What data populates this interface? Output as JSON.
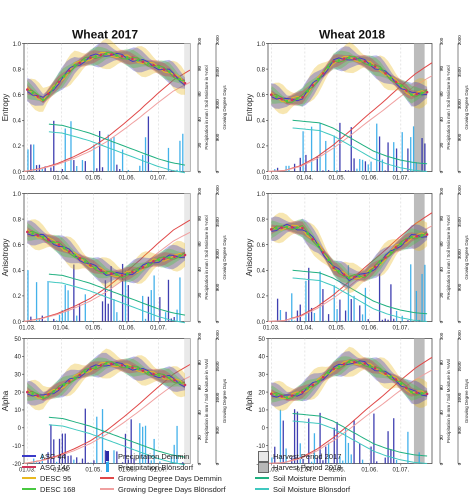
{
  "titles": [
    "Wheat 2017",
    "Wheat 2018"
  ],
  "rows": [
    {
      "ylabel": "Entropy",
      "ticks": [
        "0.0",
        "0.2",
        "0.4",
        "0.6",
        "0.8",
        "1.0"
      ],
      "ymin": 0,
      "ymax": 1.0
    },
    {
      "ylabel": "Anisotropy",
      "ticks": [
        "0.0",
        "0.2",
        "0.4",
        "0.6",
        "0.8",
        "1.0"
      ],
      "ymin": 0,
      "ymax": 1.0
    },
    {
      "ylabel": "Alpha",
      "ticks": [
        "-20",
        "-10",
        "0",
        "10",
        "20",
        "30",
        "40",
        "50"
      ],
      "ymin": -20,
      "ymax": 50
    }
  ],
  "right_axis": {
    "ylabel_precip": "Precipitation in mm / Soil Moisture in %Vol",
    "precip_ticks": [
      "0",
      "20",
      "40",
      "60",
      "80",
      "100"
    ],
    "ylabel_gdd": "Growing Degree Days",
    "gdd_ticks": [
      "0",
      "500",
      "1000",
      "1500",
      "2000"
    ]
  },
  "x_ticks": [
    "01.03.",
    "01.04.",
    "01.05.",
    "01.06.",
    "01.07."
  ],
  "legend": {
    "asc44": "ASC 44",
    "asc146": "ASC 146",
    "desc95": "DESC 95",
    "desc168": "DESC 168",
    "precip_demmin": "Precipitation Demmin",
    "precip_blonsdorf": "Precipitation Blönsdorf",
    "gdd_demmin": "Growing Degree Days Demmin",
    "gdd_blonsdorf": "Growing Degree Days Blönsdorf",
    "harvest2017": "Harvest Period 2017",
    "harvest2018": "Harvest Period 2018",
    "soil_demmin": "Soil Moisture Demmin",
    "soil_blonsdorf": "Soil Moisture Blönsdorf"
  },
  "colors": {
    "asc44": "#3a3ac8",
    "asc146": "#d0345a",
    "desc95": "#e8b820",
    "desc168": "#48c840",
    "precip_demmin": "#2a2aa8",
    "precip_blonsdorf": "#30a8e8",
    "gdd_demmin": "#e04848",
    "gdd_blonsdorf": "#f0a0a0",
    "soil_demmin": "#20b080",
    "soil_blonsdorf": "#40c8c0",
    "harvest2017": "#e8e8e8",
    "harvest2018": "#b8b8b8"
  },
  "chart_data": [
    {
      "type": "line",
      "panel": "Entropy 2017",
      "ylim": [
        0,
        1.0
      ],
      "x": [
        "01.03.",
        "15.03.",
        "01.04.",
        "15.04.",
        "01.05.",
        "15.05.",
        "01.06.",
        "15.06.",
        "01.07.",
        "15.07.",
        "31.07."
      ],
      "series": [
        {
          "name": "Entropy",
          "values": [
            0.64,
            0.56,
            0.7,
            0.83,
            0.89,
            0.92,
            0.9,
            0.87,
            0.83,
            0.78,
            0.69
          ]
        }
      ],
      "gdd_demmin": [
        0,
        60,
        160,
        300,
        470,
        690,
        960,
        1250,
        1560,
        1850,
        2050
      ],
      "soil_demmin": [
        37,
        36,
        33,
        30,
        26,
        22,
        18,
        14,
        10,
        7,
        5
      ],
      "harvest_period": [
        "25.07.",
        "31.07."
      ]
    },
    {
      "type": "line",
      "panel": "Entropy 2018",
      "ylim": [
        0,
        1.0
      ],
      "x": [
        "01.03.",
        "15.03.",
        "01.04.",
        "15.04.",
        "01.05.",
        "15.05.",
        "01.06.",
        "15.06.",
        "01.07.",
        "15.07.",
        "31.07."
      ],
      "series": [
        {
          "name": "Entropy",
          "values": [
            0.6,
            0.55,
            0.58,
            0.72,
            0.86,
            0.89,
            0.86,
            0.8,
            0.7,
            0.6,
            0.62
          ]
        }
      ],
      "gdd_demmin": [
        0,
        20,
        120,
        300,
        540,
        820,
        1120,
        1400,
        1700,
        1980,
        2200
      ],
      "soil_demmin": [
        40,
        39,
        38,
        34,
        28,
        22,
        16,
        12,
        9,
        7,
        6
      ],
      "harvest_period": [
        "15.07.",
        "25.07."
      ]
    },
    {
      "type": "line",
      "panel": "Anisotropy 2017",
      "ylim": [
        0,
        1.0
      ],
      "x": [
        "01.03.",
        "15.03.",
        "01.04.",
        "15.04.",
        "01.05.",
        "15.05.",
        "01.06.",
        "15.06.",
        "01.07.",
        "15.07.",
        "31.07."
      ],
      "series": [
        {
          "name": "Anisotropy",
          "values": [
            0.7,
            0.66,
            0.6,
            0.52,
            0.44,
            0.38,
            0.36,
            0.4,
            0.47,
            0.5,
            0.52
          ]
        }
      ],
      "gdd_demmin": [
        0,
        60,
        160,
        300,
        470,
        690,
        960,
        1250,
        1560,
        1850,
        2050
      ],
      "soil_demmin": [
        37,
        36,
        33,
        30,
        26,
        22,
        18,
        14,
        10,
        7,
        5
      ],
      "harvest_period": [
        "25.07.",
        "31.07."
      ]
    },
    {
      "type": "line",
      "panel": "Anisotropy 2018",
      "ylim": [
        0,
        1.0
      ],
      "x": [
        "01.03.",
        "15.03.",
        "01.04.",
        "15.04.",
        "01.05.",
        "15.05.",
        "01.06.",
        "15.06.",
        "01.07.",
        "15.07.",
        "31.07."
      ],
      "series": [
        {
          "name": "Anisotropy",
          "values": [
            0.72,
            0.74,
            0.73,
            0.6,
            0.42,
            0.34,
            0.36,
            0.46,
            0.58,
            0.66,
            0.68
          ]
        }
      ],
      "gdd_demmin": [
        0,
        20,
        120,
        300,
        540,
        820,
        1120,
        1400,
        1700,
        1980,
        2200
      ],
      "soil_demmin": [
        40,
        39,
        38,
        34,
        28,
        22,
        16,
        12,
        9,
        7,
        6
      ],
      "harvest_period": [
        "15.07.",
        "25.07."
      ]
    },
    {
      "type": "line",
      "panel": "Alpha 2017",
      "ylim": [
        -20,
        50
      ],
      "x": [
        "01.03.",
        "15.03.",
        "01.04.",
        "15.04.",
        "01.05.",
        "15.05.",
        "01.06.",
        "15.06.",
        "01.07.",
        "15.07.",
        "31.07."
      ],
      "series": [
        {
          "name": "Alpha",
          "values": [
            20,
            17,
            22,
            28,
            33,
            36,
            35,
            33,
            30,
            28,
            24
          ]
        }
      ],
      "gdd_demmin": [
        0,
        60,
        160,
        300,
        470,
        690,
        960,
        1250,
        1560,
        1850,
        2050
      ],
      "soil_demmin": [
        37,
        36,
        33,
        30,
        26,
        22,
        18,
        14,
        10,
        7,
        5
      ],
      "harvest_period": [
        "25.07.",
        "31.07."
      ]
    },
    {
      "type": "line",
      "panel": "Alpha 2018",
      "ylim": [
        -20,
        50
      ],
      "x": [
        "01.03.",
        "15.03.",
        "01.04.",
        "15.04.",
        "01.05.",
        "15.05.",
        "01.06.",
        "15.06.",
        "01.07.",
        "15.07.",
        "31.07."
      ],
      "series": [
        {
          "name": "Alpha",
          "values": [
            19,
            17,
            20,
            26,
            33,
            37,
            36,
            32,
            27,
            20,
            19
          ]
        }
      ],
      "gdd_demmin": [
        0,
        20,
        120,
        300,
        540,
        820,
        1120,
        1400,
        1700,
        1980,
        2200
      ],
      "soil_demmin": [
        40,
        39,
        38,
        34,
        28,
        22,
        16,
        12,
        9,
        7,
        6
      ],
      "harvest_period": [
        "15.07.",
        "25.07."
      ]
    }
  ]
}
